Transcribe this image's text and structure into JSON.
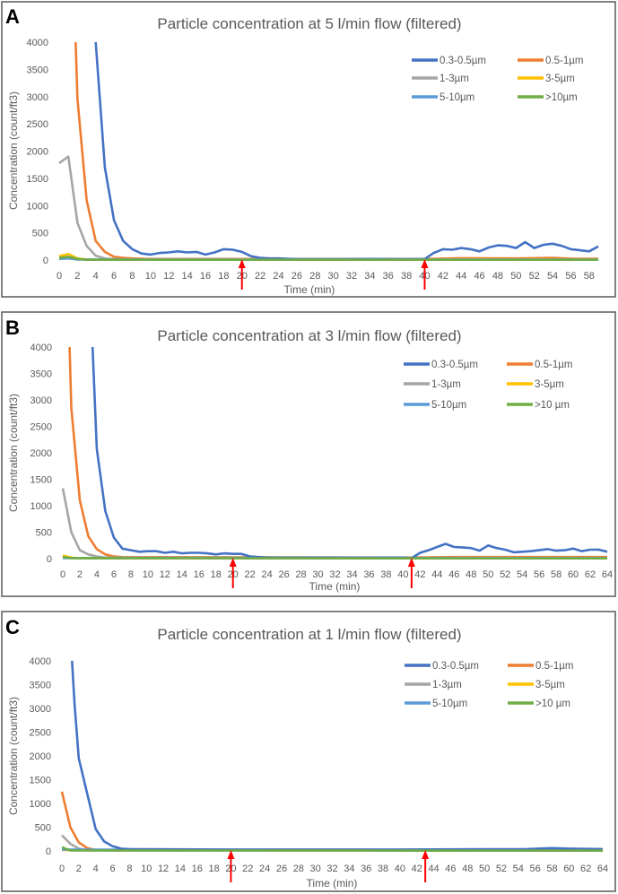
{
  "chart_data": [
    {
      "type": "line",
      "panel_label": "A",
      "title": "Particle concentration at 5 l/min flow (filtered)",
      "xlabel": "Time (min)",
      "ylabel": "Concentration (count/ft3)",
      "xlim": [
        0,
        59
      ],
      "ylim": [
        0,
        4000
      ],
      "xticks": [
        "0",
        "2",
        "4",
        "6",
        "8",
        "10",
        "12",
        "14",
        "16",
        "18",
        "20",
        "22",
        "24",
        "26",
        "28",
        "30",
        "32",
        "34",
        "36",
        "38",
        "40",
        "42",
        "44",
        "46",
        "48",
        "50",
        "52",
        "54",
        "56",
        "58"
      ],
      "yticks": [
        "0",
        "500",
        "1000",
        "1500",
        "2000",
        "2500",
        "3000",
        "3500",
        "4000"
      ],
      "grid": false,
      "legend_position": "top-right",
      "arrows_at": [
        20,
        40
      ],
      "series": [
        {
          "name": "0.3-0.5µm",
          "color": "#4472C4",
          "points": [
            [
              4,
              4000
            ],
            [
              5,
              1700
            ],
            [
              6,
              730
            ],
            [
              7,
              350
            ],
            [
              8,
              200
            ],
            [
              9,
              120
            ],
            [
              10,
              100
            ],
            [
              11,
              130
            ],
            [
              12,
              140
            ],
            [
              13,
              160
            ],
            [
              14,
              140
            ],
            [
              15,
              150
            ],
            [
              16,
              100
            ],
            [
              17,
              140
            ],
            [
              18,
              200
            ],
            [
              19,
              190
            ],
            [
              20,
              150
            ],
            [
              21,
              70
            ],
            [
              22,
              40
            ],
            [
              23,
              30
            ],
            [
              24,
              30
            ],
            [
              26,
              15
            ],
            [
              30,
              15
            ],
            [
              34,
              20
            ],
            [
              38,
              15
            ],
            [
              40,
              20
            ],
            [
              41,
              130
            ],
            [
              42,
              200
            ],
            [
              43,
              190
            ],
            [
              44,
              220
            ],
            [
              45,
              200
            ],
            [
              46,
              160
            ],
            [
              47,
              230
            ],
            [
              48,
              270
            ],
            [
              49,
              260
            ],
            [
              50,
              220
            ],
            [
              51,
              330
            ],
            [
              52,
              220
            ],
            [
              53,
              280
            ],
            [
              54,
              300
            ],
            [
              55,
              260
            ],
            [
              56,
              200
            ],
            [
              57,
              180
            ],
            [
              58,
              160
            ],
            [
              59,
              250
            ]
          ]
        },
        {
          "name": "0.5-1µm",
          "color": "#ED7D31",
          "points": [
            [
              1.8,
              4000
            ],
            [
              2,
              2950
            ],
            [
              3,
              1100
            ],
            [
              4,
              350
            ],
            [
              5,
              150
            ],
            [
              6,
              60
            ],
            [
              7,
              40
            ],
            [
              8,
              30
            ],
            [
              10,
              20
            ],
            [
              40,
              20
            ],
            [
              44,
              35
            ],
            [
              50,
              30
            ],
            [
              54,
              40
            ],
            [
              56,
              25
            ],
            [
              59,
              25
            ]
          ]
        },
        {
          "name": "1-3µm",
          "color": "#A5A5A5",
          "points": [
            [
              0,
              1780
            ],
            [
              1,
              1900
            ],
            [
              2,
              680
            ],
            [
              3,
              260
            ],
            [
              4,
              80
            ],
            [
              5,
              30
            ],
            [
              6,
              15
            ],
            [
              59,
              10
            ]
          ]
        },
        {
          "name": "3-5µm",
          "color": "#FFC000",
          "points": [
            [
              0,
              70
            ],
            [
              1,
              110
            ],
            [
              2,
              30
            ],
            [
              3,
              10
            ],
            [
              59,
              5
            ]
          ]
        },
        {
          "name": "5-10µm",
          "color": "#5B9BD5",
          "points": [
            [
              0,
              20
            ],
            [
              1,
              30
            ],
            [
              2,
              10
            ],
            [
              59,
              5
            ]
          ]
        },
        {
          "name": ">10µm",
          "color": "#70AD47",
          "points": [
            [
              0,
              40
            ],
            [
              1,
              60
            ],
            [
              2,
              20
            ],
            [
              3,
              5
            ],
            [
              59,
              5
            ]
          ]
        }
      ]
    },
    {
      "type": "line",
      "panel_label": "B",
      "title": "Particle concentration at 3 l/min flow (filtered)",
      "xlabel": "Time (min)",
      "ylabel": "Concentration (count/ft3)",
      "xlim": [
        0,
        64
      ],
      "ylim": [
        0,
        4000
      ],
      "xticks": [
        "0",
        "2",
        "4",
        "6",
        "8",
        "10",
        "12",
        "14",
        "16",
        "18",
        "20",
        "22",
        "24",
        "26",
        "28",
        "30",
        "32",
        "34",
        "36",
        "38",
        "40",
        "42",
        "44",
        "46",
        "48",
        "50",
        "52",
        "54",
        "56",
        "58",
        "60",
        "62",
        "64"
      ],
      "yticks": [
        "0",
        "500",
        "1000",
        "1500",
        "2000",
        "2500",
        "3000",
        "3500",
        "4000"
      ],
      "grid": false,
      "legend_position": "top-right",
      "arrows_at": [
        20,
        41
      ],
      "series": [
        {
          "name": "0.3-0.5µm",
          "color": "#4472C4",
          "points": [
            [
              3.5,
              4000
            ],
            [
              4,
              2080
            ],
            [
              5,
              900
            ],
            [
              6,
              400
            ],
            [
              7,
              190
            ],
            [
              8,
              160
            ],
            [
              9,
              130
            ],
            [
              10,
              140
            ],
            [
              11,
              140
            ],
            [
              12,
              110
            ],
            [
              13,
              130
            ],
            [
              14,
              100
            ],
            [
              15,
              110
            ],
            [
              16,
              110
            ],
            [
              17,
              100
            ],
            [
              18,
              80
            ],
            [
              19,
              100
            ],
            [
              20,
              90
            ],
            [
              21,
              90
            ],
            [
              22,
              40
            ],
            [
              23,
              30
            ],
            [
              24,
              20
            ],
            [
              30,
              20
            ],
            [
              36,
              20
            ],
            [
              40,
              20
            ],
            [
              41,
              10
            ],
            [
              42,
              110
            ],
            [
              43,
              160
            ],
            [
              44,
              220
            ],
            [
              45,
              280
            ],
            [
              46,
              220
            ],
            [
              47,
              210
            ],
            [
              48,
              200
            ],
            [
              49,
              150
            ],
            [
              50,
              250
            ],
            [
              51,
              200
            ],
            [
              52,
              170
            ],
            [
              53,
              120
            ],
            [
              54,
              130
            ],
            [
              55,
              140
            ],
            [
              56,
              160
            ],
            [
              57,
              180
            ],
            [
              58,
              150
            ],
            [
              59,
              160
            ],
            [
              60,
              190
            ],
            [
              61,
              140
            ],
            [
              62,
              170
            ],
            [
              63,
              170
            ],
            [
              64,
              130
            ]
          ]
        },
        {
          "name": "0.5-1µm",
          "color": "#ED7D31",
          "points": [
            [
              0.8,
              4000
            ],
            [
              1,
              2850
            ],
            [
              2,
              1100
            ],
            [
              3,
              420
            ],
            [
              4,
              180
            ],
            [
              5,
              80
            ],
            [
              6,
              40
            ],
            [
              7,
              30
            ],
            [
              40,
              20
            ],
            [
              46,
              30
            ],
            [
              64,
              30
            ]
          ]
        },
        {
          "name": "1-3µm",
          "color": "#A5A5A5",
          "points": [
            [
              0,
              1330
            ],
            [
              1,
              500
            ],
            [
              2,
              160
            ],
            [
              3,
              80
            ],
            [
              4,
              40
            ],
            [
              5,
              20
            ],
            [
              64,
              10
            ]
          ]
        },
        {
          "name": "3-5µm",
          "color": "#FFC000",
          "points": [
            [
              0,
              60
            ],
            [
              1,
              20
            ],
            [
              2,
              5
            ],
            [
              64,
              5
            ]
          ]
        },
        {
          "name": "5-10µm",
          "color": "#5B9BD5",
          "points": [
            [
              0,
              10
            ],
            [
              64,
              10
            ]
          ]
        },
        {
          "name": ">10 µm",
          "color": "#70AD47",
          "points": [
            [
              0,
              30
            ],
            [
              1,
              10
            ],
            [
              64,
              5
            ]
          ]
        }
      ]
    },
    {
      "type": "line",
      "panel_label": "C",
      "title": "Particle concentration at 1 l/min flow (filtered)",
      "xlabel": "Time (min)",
      "ylabel": "Concentration (count/ft3)",
      "xlim": [
        0,
        64
      ],
      "ylim": [
        0,
        4000
      ],
      "xticks": [
        "0",
        "2",
        "4",
        "6",
        "8",
        "10",
        "12",
        "14",
        "16",
        "18",
        "20",
        "22",
        "24",
        "26",
        "28",
        "30",
        "32",
        "34",
        "36",
        "38",
        "40",
        "42",
        "44",
        "46",
        "48",
        "50",
        "52",
        "54",
        "56",
        "58",
        "60",
        "62",
        "64"
      ],
      "yticks": [
        "0",
        "500",
        "1000",
        "1500",
        "2000",
        "2500",
        "3000",
        "3500",
        "4000"
      ],
      "grid": false,
      "legend_position": "top-right",
      "arrows_at": [
        20,
        43
      ],
      "series": [
        {
          "name": "0.3-0.5µm",
          "color": "#4472C4",
          "points": [
            [
              1.2,
              4000
            ],
            [
              1.5,
              3100
            ],
            [
              2,
              1950
            ],
            [
              3,
              1200
            ],
            [
              4,
              460
            ],
            [
              5,
              200
            ],
            [
              6,
              100
            ],
            [
              7,
              50
            ],
            [
              8,
              40
            ],
            [
              10,
              35
            ],
            [
              20,
              30
            ],
            [
              40,
              30
            ],
            [
              50,
              35
            ],
            [
              55,
              40
            ],
            [
              58,
              60
            ],
            [
              60,
              50
            ],
            [
              64,
              40
            ]
          ]
        },
        {
          "name": "0.5-1µm",
          "color": "#ED7D31",
          "points": [
            [
              0,
              1250
            ],
            [
              1,
              500
            ],
            [
              2,
              180
            ],
            [
              3,
              60
            ],
            [
              4,
              20
            ],
            [
              64,
              10
            ]
          ]
        },
        {
          "name": "1-3µm",
          "color": "#A5A5A5",
          "points": [
            [
              0,
              330
            ],
            [
              1,
              150
            ],
            [
              2,
              50
            ],
            [
              3,
              15
            ],
            [
              64,
              5
            ]
          ]
        },
        {
          "name": "3-5µm",
          "color": "#FFC000",
          "points": [
            [
              0,
              20
            ],
            [
              64,
              5
            ]
          ]
        },
        {
          "name": "5-10µm",
          "color": "#5B9BD5",
          "points": [
            [
              0,
              30
            ],
            [
              64,
              10
            ]
          ]
        },
        {
          "name": ">10 µm",
          "color": "#70AD47",
          "points": [
            [
              0,
              80
            ],
            [
              1,
              10
            ],
            [
              64,
              5
            ]
          ]
        }
      ]
    }
  ]
}
